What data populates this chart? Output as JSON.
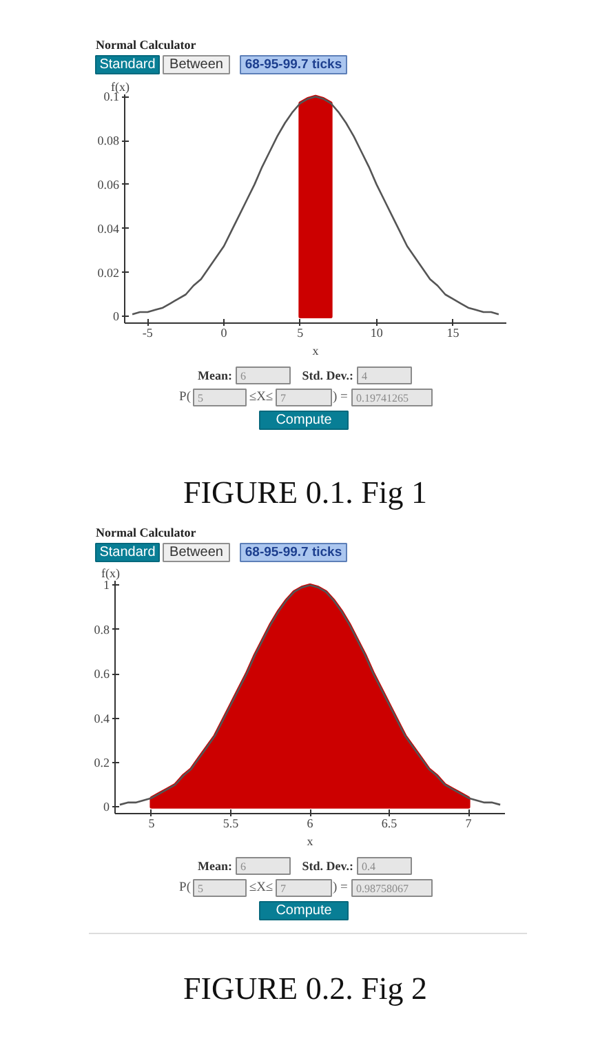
{
  "chart_data": [
    {
      "type": "line",
      "title": "Normal Calculator",
      "xlabel": "x",
      "ylabel": "f(x)",
      "xlim": [
        -6.5,
        18.5
      ],
      "ylim": [
        -0.003,
        0.101
      ],
      "xticks": [
        -5,
        0,
        5,
        10,
        15
      ],
      "yticks": [
        0,
        0.02,
        0.04,
        0.06,
        0.08,
        0.1
      ],
      "series": [
        {
          "type": "area",
          "color": "#cc0000",
          "x": [
            5,
            5.5,
            6,
            6.5,
            7
          ],
          "values": [
            0.097,
            0.099,
            0.1,
            0.099,
            0.097
          ]
        },
        {
          "color": "#555555",
          "x": [
            -6,
            -5.5,
            -5,
            -4.5,
            -4,
            -3.5,
            -3,
            -2.5,
            -2,
            -1.5,
            -1,
            -0.5,
            0,
            0.5,
            1,
            1.5,
            2,
            2.5,
            3,
            3.5,
            4,
            4.5,
            5,
            5.5,
            6,
            6.5,
            7,
            7.5,
            8,
            8.5,
            9,
            9.5,
            10,
            10.5,
            11,
            11.5,
            12,
            12.5,
            13,
            13.5,
            14,
            14.5,
            15,
            15.5,
            16,
            16.5,
            17,
            17.5,
            18
          ],
          "values": [
            0.001,
            0.002,
            0.002,
            0.003,
            0.004,
            0.006,
            0.008,
            0.01,
            0.014,
            0.017,
            0.022,
            0.027,
            0.032,
            0.039,
            0.046,
            0.053,
            0.06,
            0.068,
            0.075,
            0.082,
            0.088,
            0.093,
            0.097,
            0.099,
            0.1,
            0.099,
            0.097,
            0.093,
            0.088,
            0.082,
            0.075,
            0.068,
            0.06,
            0.053,
            0.046,
            0.039,
            0.032,
            0.027,
            0.022,
            0.017,
            0.014,
            0.01,
            0.008,
            0.006,
            0.004,
            0.003,
            0.002,
            0.002,
            0.001
          ]
        }
      ],
      "annotations": [
        "Standard",
        "Between",
        "68-95-99.7 ticks",
        "Mean:",
        "6",
        "Std. Dev.:",
        "4",
        "P(",
        "5",
        "≤X≤",
        "7",
        ") =",
        "0.19741265",
        "Compute",
        "FIGURE 0.1. Fig 1"
      ]
    },
    {
      "type": "line",
      "title": "Normal Calculator",
      "xlabel": "x",
      "ylabel": "f(x)",
      "xlim": [
        4.77,
        7.23
      ],
      "ylim": [
        -0.03,
        1.02
      ],
      "xticks": [
        5,
        5.5,
        6,
        6.5,
        7
      ],
      "yticks": [
        0,
        0.2,
        0.4,
        0.6,
        0.8,
        1
      ],
      "series": [
        {
          "type": "area",
          "color": "#cc0000",
          "x": [
            5,
            5.05,
            5.1,
            5.15,
            5.2,
            5.25,
            5.3,
            5.35,
            5.4,
            5.45,
            5.5,
            5.55,
            5.6,
            5.65,
            5.7,
            5.75,
            5.8,
            5.85,
            5.9,
            5.95,
            6,
            6.05,
            6.1,
            6.15,
            6.2,
            6.25,
            6.3,
            6.35,
            6.4,
            6.45,
            6.5,
            6.55,
            6.6,
            6.65,
            6.7,
            6.75,
            6.8,
            6.85,
            6.9,
            6.95,
            7
          ],
          "values": [
            0.04,
            0.06,
            0.08,
            0.1,
            0.14,
            0.17,
            0.22,
            0.27,
            0.32,
            0.39,
            0.46,
            0.53,
            0.6,
            0.68,
            0.75,
            0.82,
            0.88,
            0.93,
            0.97,
            0.99,
            1.0,
            0.99,
            0.97,
            0.93,
            0.88,
            0.82,
            0.75,
            0.68,
            0.6,
            0.53,
            0.46,
            0.39,
            0.32,
            0.27,
            0.22,
            0.17,
            0.14,
            0.1,
            0.08,
            0.06,
            0.04
          ]
        },
        {
          "color": "#555555",
          "x": [
            4.8,
            4.85,
            4.9,
            4.95,
            5,
            5.05,
            5.1,
            5.15,
            5.2,
            5.25,
            5.3,
            5.35,
            5.4,
            5.45,
            5.5,
            5.55,
            5.6,
            5.65,
            5.7,
            5.75,
            5.8,
            5.85,
            5.9,
            5.95,
            6,
            6.05,
            6.1,
            6.15,
            6.2,
            6.25,
            6.3,
            6.35,
            6.4,
            6.45,
            6.5,
            6.55,
            6.6,
            6.65,
            6.7,
            6.75,
            6.8,
            6.85,
            6.9,
            6.95,
            7,
            7.05,
            7.1,
            7.15,
            7.2
          ],
          "values": [
            0.01,
            0.02,
            0.02,
            0.03,
            0.04,
            0.06,
            0.08,
            0.1,
            0.14,
            0.17,
            0.22,
            0.27,
            0.32,
            0.39,
            0.46,
            0.53,
            0.6,
            0.68,
            0.75,
            0.82,
            0.88,
            0.93,
            0.97,
            0.99,
            1.0,
            0.99,
            0.97,
            0.93,
            0.88,
            0.82,
            0.75,
            0.68,
            0.6,
            0.53,
            0.46,
            0.39,
            0.32,
            0.27,
            0.22,
            0.17,
            0.14,
            0.1,
            0.08,
            0.06,
            0.04,
            0.03,
            0.02,
            0.02,
            0.01
          ]
        }
      ],
      "annotations": [
        "Standard",
        "Between",
        "68-95-99.7 ticks",
        "Mean:",
        "6",
        "Std. Dev.:",
        "0.4",
        "P(",
        "5",
        "≤X≤",
        "7",
        ") =",
        "0.98758067",
        "Compute",
        "FIGURE 0.2. Fig 2"
      ]
    }
  ]
}
